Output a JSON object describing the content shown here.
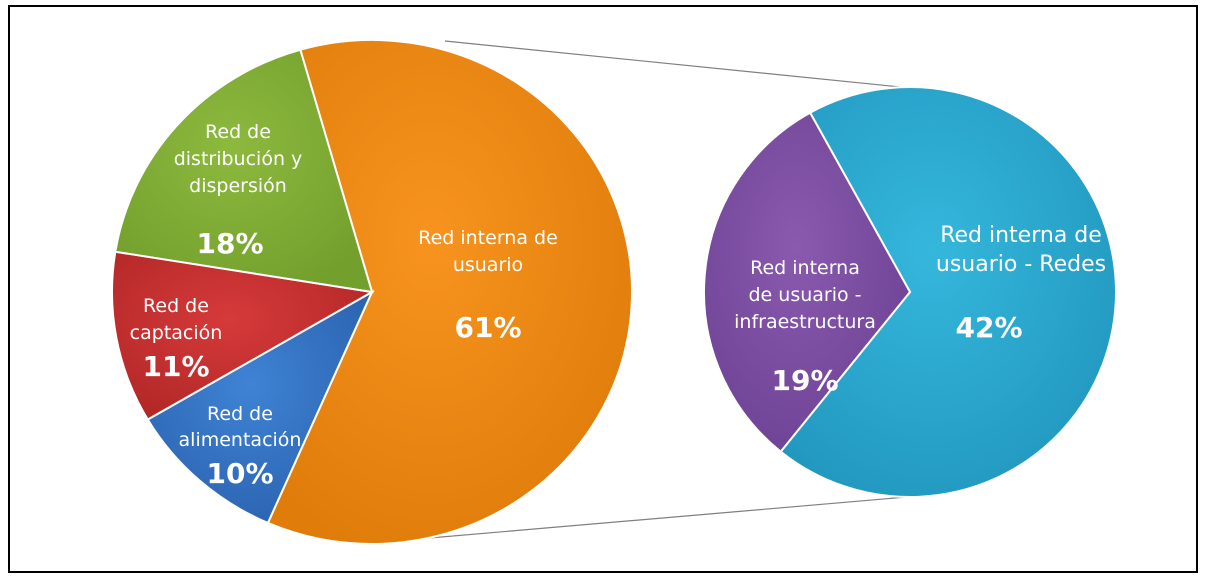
{
  "chart_data": {
    "type": "pie",
    "main_pie": {
      "slices": [
        {
          "label": "Red interna de usuario",
          "value": 61,
          "value_label": "61%",
          "color": "#F7931E",
          "shade": "#E07C0A"
        },
        {
          "label": "Red de alimentación",
          "value": 10,
          "value_label": "10%",
          "color": "#3F83D4",
          "shade": "#2B63B0"
        },
        {
          "label": "Red de captación",
          "value": 11,
          "value_label": "11%",
          "color": "#D63A3A",
          "shade": "#B22727"
        },
        {
          "label": "Red de distribución y dispersión",
          "value": 18,
          "value_label": "18%",
          "color": "#8DB93E",
          "shade": "#73A02D"
        }
      ]
    },
    "breakdown_pie": {
      "of_slice": "Red interna de usuario",
      "slices": [
        {
          "label": "Red interna de usuario - Redes",
          "value": 42,
          "value_label": "42%",
          "color": "#35B7DC",
          "shade": "#2298BF"
        },
        {
          "label": "Red interna de usuario - infraestructura",
          "value": 19,
          "value_label": "19%",
          "color": "#8A5AAE",
          "shade": "#6D4294"
        }
      ]
    },
    "colors": {
      "connector": "#7f7f7f",
      "border": "#000000",
      "separator": "#ffffff"
    }
  }
}
